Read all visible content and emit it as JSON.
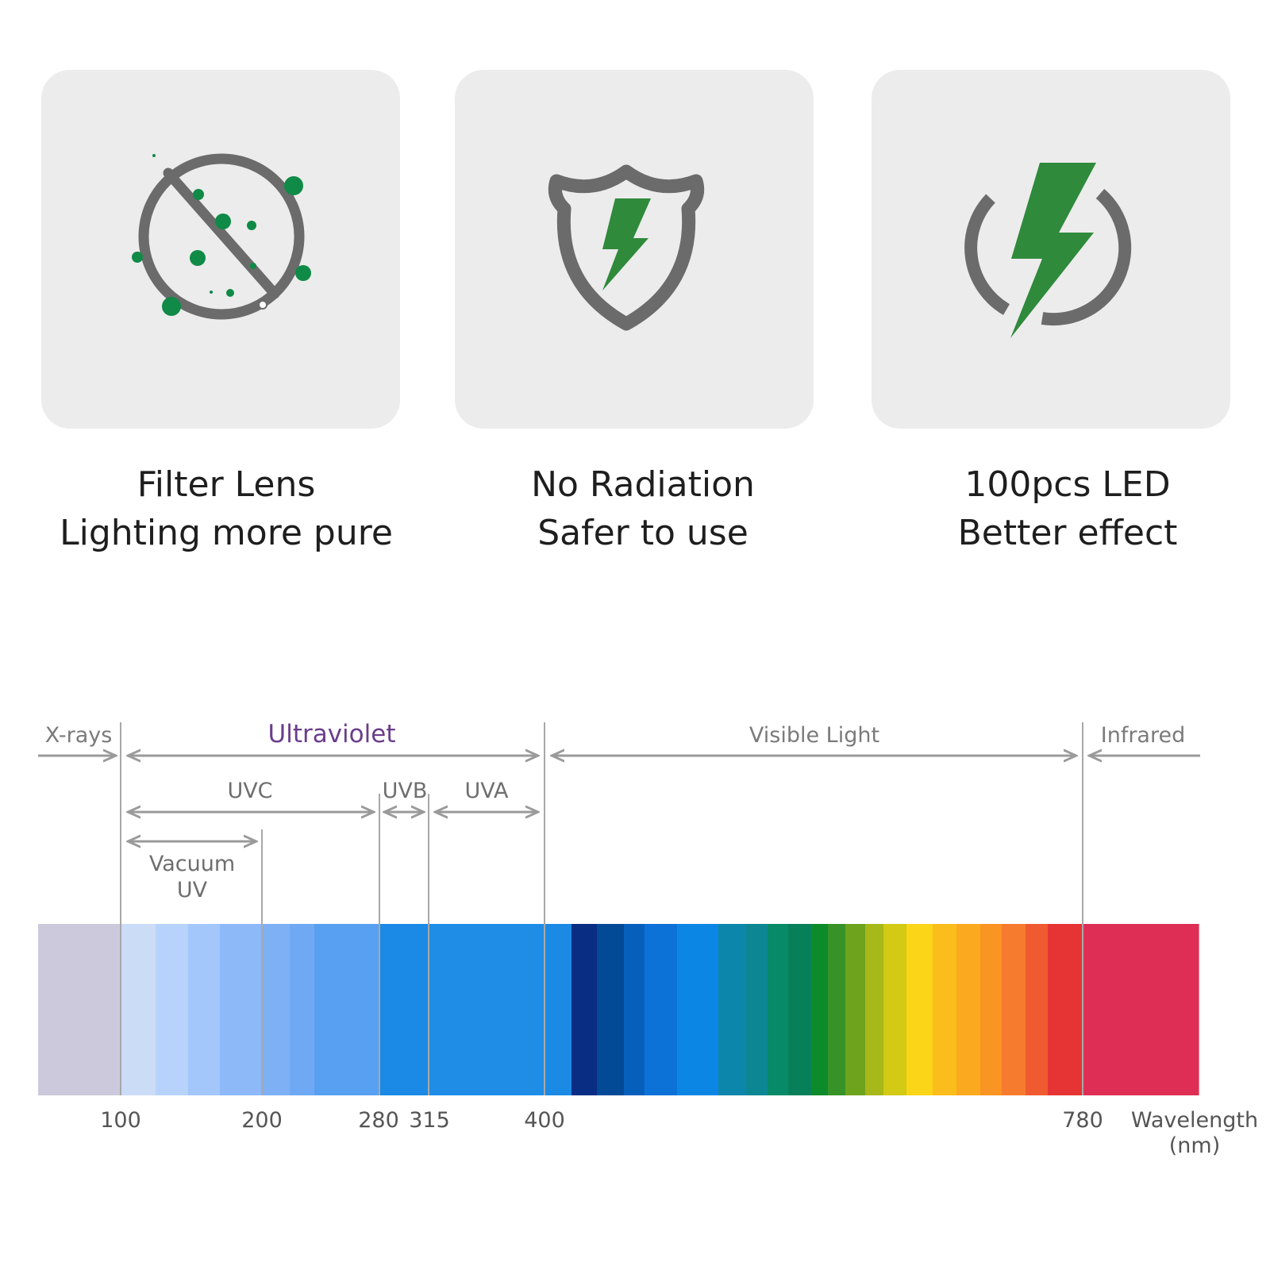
{
  "features": [
    {
      "icon": "filter-lens-icon",
      "line1": "Filter Lens",
      "line2": "Lighting more pure"
    },
    {
      "icon": "shield-bolt-icon",
      "line1": "No Radiation",
      "line2": "Safer to use"
    },
    {
      "icon": "power-bolt-icon",
      "line1": "100pcs LED",
      "line2": "Better effect"
    }
  ],
  "colors": {
    "card_bg": "#ececec",
    "icon_gray": "#6b6b6b",
    "icon_green": "#2f8a3b",
    "dot_green": "#108a47",
    "ultraviolet_label": "#6a3d8a"
  },
  "spectrum": {
    "regions": [
      {
        "key": "xrays",
        "label": "X-rays"
      },
      {
        "key": "ultraviolet",
        "label": "Ultraviolet"
      },
      {
        "key": "visible",
        "label": "Visible Light"
      },
      {
        "key": "infrared",
        "label": "Infrared"
      }
    ],
    "subbands": [
      {
        "key": "uvc",
        "label": "UVC"
      },
      {
        "key": "uvb",
        "label": "UVB"
      },
      {
        "key": "uva",
        "label": "UVA"
      }
    ],
    "vacuum_uv": {
      "line1": "Vacuum",
      "line2": "UV"
    },
    "ticks": [
      "100",
      "200",
      "280",
      "315",
      "400",
      "780"
    ],
    "axis_label": {
      "line1": "Wavelength",
      "line2": "(nm)"
    },
    "bar_colors": [
      "#cdc9dc",
      "#cbdcf7",
      "#b8d3fb",
      "#a3c7fb",
      "#8db9f8",
      "#7db0f5",
      "#6fa9f4",
      "#58a0f1",
      "#1a8ae6",
      "#1f8de6",
      "#1b8ae5",
      "#0a2d84",
      "#034a96",
      "#0660bb",
      "#0c72d8",
      "#0c86e4",
      "#0d86ab",
      "#0d8693",
      "#068a68",
      "#07805a",
      "#0d8b2a",
      "#379327",
      "#6ea31d",
      "#a7b819",
      "#d2ca14",
      "#fbd518",
      "#fbbd1c",
      "#fba91f",
      "#fa9422",
      "#f77b2f",
      "#ef5a30",
      "#e63434",
      "#df2e55",
      "#fa91a5"
    ]
  }
}
